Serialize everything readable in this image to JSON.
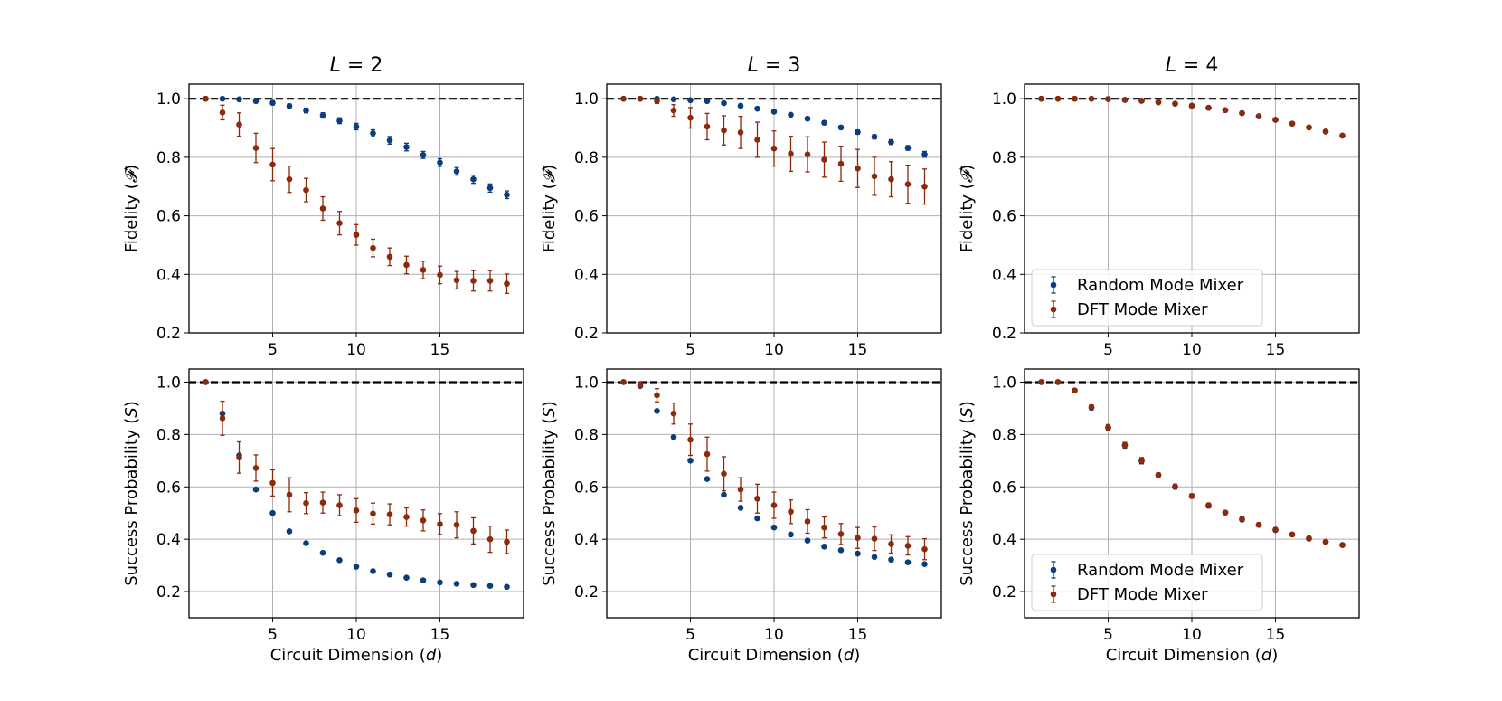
{
  "chart_data": [
    {
      "type": "scatter",
      "title": "L = 2",
      "xlabel": "",
      "ylabel": "Fidelity (𝓕)",
      "xlim": [
        0,
        20
      ],
      "ylim": [
        0.2,
        1.05
      ],
      "xticks": [
        5,
        10,
        15
      ],
      "yticks": [
        0.2,
        0.4,
        0.6,
        0.8,
        1.0
      ],
      "reference_line": 1.0,
      "grid": true,
      "legend": null,
      "series": [
        {
          "label": "Random Mode Mixer",
          "color": "#0b3d7c",
          "x": [
            1,
            2,
            3,
            4,
            5,
            6,
            7,
            8,
            9,
            10,
            11,
            12,
            13,
            14,
            15,
            16,
            17,
            18,
            19
          ],
          "y": [
            1.0,
            1.0,
            0.998,
            0.992,
            0.986,
            0.975,
            0.96,
            0.943,
            0.925,
            0.905,
            0.882,
            0.858,
            0.835,
            0.808,
            0.782,
            0.752,
            0.725,
            0.695,
            0.672
          ],
          "err": [
            0,
            0.004,
            0.005,
            0.006,
            0.007,
            0.007,
            0.008,
            0.009,
            0.01,
            0.011,
            0.012,
            0.013,
            0.013,
            0.012,
            0.013,
            0.013,
            0.014,
            0.014,
            0.013
          ]
        },
        {
          "label": "DFT Mode Mixer",
          "color": "#8c2a0c",
          "x": [
            1,
            2,
            3,
            4,
            5,
            6,
            7,
            8,
            9,
            10,
            11,
            12,
            13,
            14,
            15,
            16,
            17,
            18,
            19
          ],
          "y": [
            1.0,
            0.953,
            0.912,
            0.832,
            0.775,
            0.725,
            0.688,
            0.625,
            0.575,
            0.535,
            0.49,
            0.46,
            0.432,
            0.415,
            0.398,
            0.38,
            0.378,
            0.378,
            0.368
          ],
          "err": [
            0,
            0.025,
            0.04,
            0.05,
            0.055,
            0.045,
            0.04,
            0.04,
            0.04,
            0.035,
            0.03,
            0.03,
            0.03,
            0.03,
            0.03,
            0.03,
            0.035,
            0.035,
            0.033
          ]
        }
      ]
    },
    {
      "type": "scatter",
      "title": "L = 3",
      "xlabel": "",
      "ylabel": "Fidelity (𝓕)",
      "xlim": [
        0,
        20
      ],
      "ylim": [
        0.2,
        1.05
      ],
      "xticks": [
        5,
        10,
        15
      ],
      "yticks": [
        0.2,
        0.4,
        0.6,
        0.8,
        1.0
      ],
      "reference_line": 1.0,
      "grid": true,
      "legend": null,
      "series": [
        {
          "label": "Random Mode Mixer",
          "color": "#0b3d7c",
          "x": [
            1,
            2,
            3,
            4,
            5,
            6,
            7,
            8,
            9,
            10,
            11,
            12,
            13,
            14,
            15,
            16,
            17,
            18,
            19
          ],
          "y": [
            1.0,
            1.0,
            1.0,
            0.998,
            0.995,
            0.992,
            0.985,
            0.976,
            0.966,
            0.956,
            0.945,
            0.932,
            0.918,
            0.902,
            0.886,
            0.87,
            0.852,
            0.832,
            0.81
          ],
          "err": [
            0,
            0,
            0,
            0.003,
            0.003,
            0.004,
            0.004,
            0.004,
            0.005,
            0.005,
            0.005,
            0.006,
            0.006,
            0.006,
            0.007,
            0.007,
            0.008,
            0.008,
            0.01
          ]
        },
        {
          "label": "DFT Mode Mixer",
          "color": "#8c2a0c",
          "x": [
            1,
            2,
            3,
            4,
            5,
            6,
            7,
            8,
            9,
            10,
            11,
            12,
            13,
            14,
            15,
            16,
            17,
            18,
            19
          ],
          "y": [
            1.0,
            1.0,
            0.992,
            0.96,
            0.935,
            0.905,
            0.892,
            0.885,
            0.86,
            0.83,
            0.812,
            0.81,
            0.792,
            0.778,
            0.762,
            0.735,
            0.725,
            0.708,
            0.7
          ],
          "err": [
            0,
            0.003,
            0.008,
            0.02,
            0.035,
            0.045,
            0.05,
            0.055,
            0.06,
            0.06,
            0.06,
            0.06,
            0.06,
            0.06,
            0.065,
            0.065,
            0.06,
            0.065,
            0.06
          ]
        }
      ]
    },
    {
      "type": "scatter",
      "title": "L = 4",
      "xlabel": "",
      "ylabel": "Fidelity (𝓕)",
      "xlim": [
        0,
        20
      ],
      "ylim": [
        0.2,
        1.05
      ],
      "xticks": [
        5,
        10,
        15
      ],
      "yticks": [
        0.2,
        0.4,
        0.6,
        0.8,
        1.0
      ],
      "reference_line": 1.0,
      "grid": true,
      "legend": "lower-left",
      "series": [
        {
          "label": "Random Mode Mixer",
          "color": "#0b3d7c",
          "x": [
            1,
            2,
            3,
            4,
            5,
            6,
            7,
            8,
            9,
            10,
            11,
            12,
            13,
            14,
            15,
            16,
            17,
            18,
            19
          ],
          "y": [
            1.0,
            1.0,
            1.0,
            1.0,
            0.999,
            0.996,
            0.993,
            0.988,
            0.983,
            0.976,
            0.969,
            0.961,
            0.951,
            0.94,
            0.928,
            0.915,
            0.902,
            0.888,
            0.874
          ],
          "err": [
            0,
            0,
            0,
            0,
            0,
            0.001,
            0.001,
            0.002,
            0.002,
            0.002,
            0.002,
            0.002,
            0.002,
            0.003,
            0.003,
            0.003,
            0.003,
            0.003,
            0.003
          ]
        },
        {
          "label": "DFT Mode Mixer",
          "color": "#8c2a0c",
          "x": [
            1,
            2,
            3,
            4,
            5,
            6,
            7,
            8,
            9,
            10,
            11,
            12,
            13,
            14,
            15,
            16,
            17,
            18,
            19
          ],
          "y": [
            1.0,
            1.0,
            1.0,
            1.0,
            0.999,
            0.996,
            0.993,
            0.988,
            0.983,
            0.976,
            0.969,
            0.961,
            0.951,
            0.94,
            0.928,
            0.915,
            0.902,
            0.888,
            0.874
          ],
          "err": [
            0,
            0,
            0,
            0,
            0,
            0.001,
            0.001,
            0.002,
            0.002,
            0.002,
            0.002,
            0.002,
            0.002,
            0.003,
            0.003,
            0.003,
            0.003,
            0.003,
            0.003
          ]
        }
      ]
    },
    {
      "type": "scatter",
      "title": "",
      "xlabel": "Circuit Dimension (d)",
      "ylabel": "Success Probability (S)",
      "xlim": [
        0,
        20
      ],
      "ylim": [
        0.1,
        1.05
      ],
      "xticks": [
        5,
        10,
        15
      ],
      "yticks": [
        0.2,
        0.4,
        0.6,
        0.8,
        1.0
      ],
      "reference_line": 1.0,
      "grid": true,
      "legend": null,
      "series": [
        {
          "label": "Random Mode Mixer",
          "color": "#0b3d7c",
          "x": [
            1,
            2,
            3,
            4,
            5,
            6,
            7,
            8,
            9,
            10,
            11,
            12,
            13,
            14,
            15,
            16,
            17,
            18,
            19
          ],
          "y": [
            1.0,
            0.88,
            0.72,
            0.59,
            0.5,
            0.43,
            0.385,
            0.348,
            0.32,
            0.295,
            0.278,
            0.265,
            0.253,
            0.243,
            0.235,
            0.23,
            0.225,
            0.222,
            0.218
          ],
          "err": [
            0,
            0.005,
            0.005,
            0.005,
            0.004,
            0.004,
            0.004,
            0.003,
            0.003,
            0.003,
            0.003,
            0.003,
            0.003,
            0.003,
            0.003,
            0.003,
            0.003,
            0.003,
            0.003
          ]
        },
        {
          "label": "DFT Mode Mixer",
          "color": "#8c2a0c",
          "x": [
            1,
            2,
            3,
            4,
            5,
            6,
            7,
            8,
            9,
            10,
            11,
            12,
            13,
            14,
            15,
            16,
            17,
            18,
            19
          ],
          "y": [
            1.0,
            0.862,
            0.712,
            0.672,
            0.615,
            0.57,
            0.538,
            0.54,
            0.53,
            0.51,
            0.498,
            0.495,
            0.485,
            0.472,
            0.458,
            0.455,
            0.432,
            0.4,
            0.39
          ],
          "err": [
            0,
            0.065,
            0.06,
            0.05,
            0.05,
            0.065,
            0.04,
            0.04,
            0.04,
            0.045,
            0.04,
            0.04,
            0.035,
            0.04,
            0.04,
            0.05,
            0.05,
            0.05,
            0.045
          ]
        }
      ]
    },
    {
      "type": "scatter",
      "title": "",
      "xlabel": "Circuit Dimension (d)",
      "ylabel": "Success Probability (S)",
      "xlim": [
        0,
        20
      ],
      "ylim": [
        0.1,
        1.05
      ],
      "xticks": [
        5,
        10,
        15
      ],
      "yticks": [
        0.2,
        0.4,
        0.6,
        0.8,
        1.0
      ],
      "reference_line": 1.0,
      "grid": true,
      "legend": null,
      "series": [
        {
          "label": "Random Mode Mixer",
          "color": "#0b3d7c",
          "x": [
            1,
            2,
            3,
            4,
            5,
            6,
            7,
            8,
            9,
            10,
            11,
            12,
            13,
            14,
            15,
            16,
            17,
            18,
            19
          ],
          "y": [
            1.0,
            0.985,
            0.89,
            0.79,
            0.7,
            0.63,
            0.57,
            0.52,
            0.48,
            0.445,
            0.418,
            0.395,
            0.372,
            0.358,
            0.345,
            0.332,
            0.322,
            0.312,
            0.305
          ],
          "err": [
            0,
            0.004,
            0.004,
            0.004,
            0.004,
            0.004,
            0.004,
            0.004,
            0.004,
            0.004,
            0.004,
            0.004,
            0.004,
            0.004,
            0.004,
            0.004,
            0.004,
            0.004,
            0.004
          ]
        },
        {
          "label": "DFT Mode Mixer",
          "color": "#8c2a0c",
          "x": [
            1,
            2,
            3,
            4,
            5,
            6,
            7,
            8,
            9,
            10,
            11,
            12,
            13,
            14,
            15,
            16,
            17,
            18,
            19
          ],
          "y": [
            1.0,
            0.99,
            0.95,
            0.88,
            0.78,
            0.725,
            0.65,
            0.59,
            0.555,
            0.53,
            0.505,
            0.468,
            0.445,
            0.42,
            0.405,
            0.402,
            0.382,
            0.375,
            0.362
          ],
          "err": [
            0,
            0.01,
            0.025,
            0.04,
            0.06,
            0.065,
            0.065,
            0.045,
            0.055,
            0.05,
            0.045,
            0.045,
            0.04,
            0.04,
            0.04,
            0.045,
            0.035,
            0.035,
            0.04
          ]
        }
      ]
    },
    {
      "type": "scatter",
      "title": "",
      "xlabel": "Circuit Dimension (d)",
      "ylabel": "Success Probability (S)",
      "xlim": [
        0,
        20
      ],
      "ylim": [
        0.1,
        1.05
      ],
      "xticks": [
        5,
        10,
        15
      ],
      "yticks": [
        0.2,
        0.4,
        0.6,
        0.8,
        1.0
      ],
      "reference_line": 1.0,
      "grid": true,
      "legend": "lower-left",
      "series": [
        {
          "label": "Random Mode Mixer",
          "color": "#0b3d7c",
          "x": [
            1,
            2,
            3,
            4,
            5,
            6,
            7,
            8,
            9,
            10,
            11,
            12,
            13,
            14,
            15,
            16,
            17,
            18,
            19
          ],
          "y": [
            1.0,
            1.0,
            0.968,
            0.902,
            0.825,
            0.758,
            0.698,
            0.645,
            0.6,
            0.565,
            0.528,
            0.502,
            0.475,
            0.455,
            0.435,
            0.418,
            0.402,
            0.39,
            0.378
          ],
          "err": [
            0,
            0,
            0.005,
            0.008,
            0.01,
            0.01,
            0.01,
            0.008,
            0.008,
            0.008,
            0.008,
            0.007,
            0.007,
            0.007,
            0.006,
            0.006,
            0.006,
            0.006,
            0.005
          ]
        },
        {
          "label": "DFT Mode Mixer",
          "color": "#8c2a0c",
          "x": [
            1,
            2,
            3,
            4,
            5,
            6,
            7,
            8,
            9,
            10,
            11,
            12,
            13,
            14,
            15,
            16,
            17,
            18,
            19
          ],
          "y": [
            1.0,
            1.0,
            0.968,
            0.905,
            0.828,
            0.76,
            0.702,
            0.645,
            0.602,
            0.565,
            0.53,
            0.502,
            0.478,
            0.455,
            0.437,
            0.418,
            0.404,
            0.39,
            0.378
          ],
          "err": [
            0,
            0,
            0.005,
            0.008,
            0.01,
            0.01,
            0.01,
            0.008,
            0.008,
            0.008,
            0.008,
            0.007,
            0.007,
            0.007,
            0.006,
            0.006,
            0.006,
            0.006,
            0.005
          ]
        }
      ]
    }
  ]
}
